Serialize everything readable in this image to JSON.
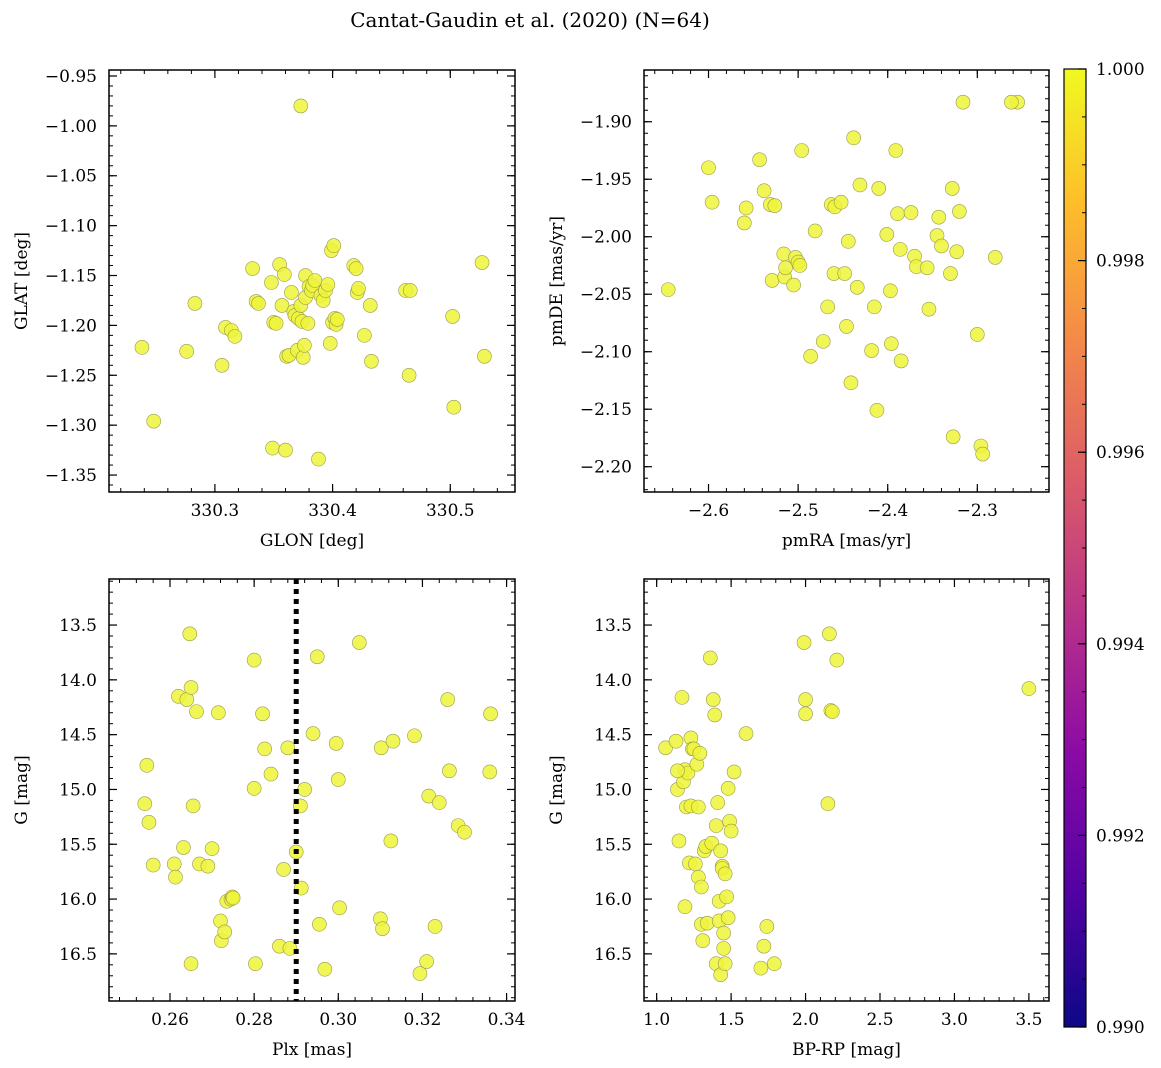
{
  "title": "Cantat-Gaudin et al. (2020) (N=64)",
  "colorbar": {
    "min": 0.99,
    "max": 1.0,
    "ticks": [
      "0.990",
      "0.992",
      "0.994",
      "0.996",
      "0.998",
      "1.000"
    ],
    "tick_values": [
      0.99,
      0.992,
      0.994,
      0.996,
      0.998,
      1.0
    ],
    "colormap": [
      "#0d0887",
      "#5302a3",
      "#8b0aa5",
      "#b83289",
      "#db5c68",
      "#f48849",
      "#febd2a",
      "#f0f921"
    ]
  },
  "marker_color": "#eef53a",
  "marker_edge": "#9a9a4a",
  "chart_data": [
    {
      "id": "glon-glat",
      "type": "scatter",
      "xlabel": "GLON [deg]",
      "ylabel": "GLAT [deg]",
      "xlim": [
        330.21,
        330.555
      ],
      "ylim": [
        -1.367,
        -0.944
      ],
      "yinvert": false,
      "xticks": [
        330.3,
        330.4,
        330.5
      ],
      "xtick_labels": [
        "330.3",
        "330.4",
        "330.5"
      ],
      "yticks": [
        -1.35,
        -1.3,
        -1.25,
        -1.2,
        -1.15,
        -1.1,
        -1.05,
        -1.0,
        -0.95
      ],
      "ytick_labels": [
        "−1.35",
        "−1.30",
        "−1.25",
        "−1.20",
        "−1.15",
        "−1.10",
        "−1.05",
        "−1.00",
        "−0.95"
      ],
      "x": [
        330.373,
        330.238,
        330.248,
        330.276,
        330.283,
        330.306,
        330.309,
        330.314,
        330.317,
        330.332,
        330.335,
        330.337,
        330.348,
        330.35,
        330.349,
        330.352,
        330.355,
        330.357,
        330.359,
        330.36,
        330.361,
        330.363,
        330.365,
        330.367,
        330.368,
        330.37,
        330.371,
        330.373,
        330.374,
        330.375,
        330.376,
        330.377,
        330.377,
        330.379,
        330.38,
        330.382,
        330.383,
        330.385,
        330.388,
        330.39,
        330.392,
        330.394,
        330.396,
        330.398,
        330.399,
        330.4,
        330.401,
        330.402,
        330.403,
        330.404,
        330.418,
        330.42,
        330.421,
        330.422,
        330.427,
        330.432,
        330.433,
        330.462,
        330.465,
        330.466,
        330.502,
        330.503,
        330.527,
        330.529
      ],
      "y": [
        -0.98,
        -1.222,
        -1.296,
        -1.226,
        -1.178,
        -1.24,
        -1.202,
        -1.205,
        -1.211,
        -1.143,
        -1.176,
        -1.178,
        -1.157,
        -1.197,
        -1.323,
        -1.198,
        -1.139,
        -1.18,
        -1.149,
        -1.325,
        -1.231,
        -1.23,
        -1.167,
        -1.186,
        -1.19,
        -1.225,
        -1.193,
        -1.18,
        -1.196,
        -1.232,
        -1.22,
        -1.172,
        -1.15,
        -1.198,
        -1.161,
        -1.165,
        -1.16,
        -1.155,
        -1.334,
        -1.17,
        -1.175,
        -1.165,
        -1.159,
        -1.218,
        -1.125,
        -1.197,
        -1.12,
        -1.193,
        -1.199,
        -1.194,
        -1.14,
        -1.143,
        -1.167,
        -1.163,
        -1.21,
        -1.18,
        -1.236,
        -1.165,
        -1.25,
        -1.165,
        -1.191,
        -1.282,
        -1.137,
        -1.231
      ]
    },
    {
      "id": "pmra-pmde",
      "type": "scatter",
      "xlabel": "pmRA [mas/yr]",
      "ylabel": "pmDE [mas/yr]",
      "xlim": [
        -2.672,
        -2.22
      ],
      "ylim": [
        -2.222,
        -1.855
      ],
      "yinvert": false,
      "xticks": [
        -2.6,
        -2.5,
        -2.4,
        -2.3
      ],
      "xtick_labels": [
        "−2.6",
        "−2.5",
        "−2.4",
        "−2.3"
      ],
      "yticks": [
        -2.2,
        -2.15,
        -2.1,
        -2.05,
        -2.0,
        -1.95,
        -1.9
      ],
      "ytick_labels": [
        "−2.20",
        "−2.15",
        "−2.10",
        "−2.05",
        "−2.00",
        "−1.95",
        "−1.90"
      ],
      "x": [
        -2.645,
        -2.6,
        -2.596,
        -2.56,
        -2.558,
        -2.543,
        -2.538,
        -2.531,
        -2.529,
        -2.526,
        -2.516,
        -2.515,
        -2.514,
        -2.505,
        -2.503,
        -2.5,
        -2.498,
        -2.496,
        -2.486,
        -2.481,
        -2.472,
        -2.467,
        -2.463,
        -2.46,
        -2.459,
        -2.452,
        -2.448,
        -2.446,
        -2.444,
        -2.441,
        -2.438,
        -2.434,
        -2.431,
        -2.418,
        -2.415,
        -2.412,
        -2.41,
        -2.401,
        -2.397,
        -2.396,
        -2.391,
        -2.389,
        -2.386,
        -2.385,
        -2.374,
        -2.37,
        -2.368,
        -2.356,
        -2.354,
        -2.345,
        -2.343,
        -2.34,
        -2.33,
        -2.328,
        -2.327,
        -2.323,
        -2.32,
        -2.316,
        -2.3,
        -2.296,
        -2.294,
        -2.28,
        -2.255,
        -2.262
      ],
      "y": [
        -2.046,
        -1.94,
        -1.97,
        -1.988,
        -1.975,
        -1.933,
        -1.96,
        -1.972,
        -2.038,
        -1.973,
        -2.015,
        -2.035,
        -2.027,
        -2.042,
        -2.018,
        -2.022,
        -2.025,
        -1.925,
        -2.104,
        -1.995,
        -2.091,
        -2.061,
        -1.972,
        -2.032,
        -1.974,
        -1.97,
        -2.032,
        -2.078,
        -2.004,
        -2.127,
        -1.914,
        -2.044,
        -1.955,
        -2.099,
        -2.061,
        -2.151,
        -1.958,
        -1.998,
        -2.047,
        -2.093,
        -1.925,
        -1.98,
        -2.011,
        -2.108,
        -1.979,
        -2.017,
        -2.026,
        -2.027,
        -2.063,
        -1.999,
        -1.983,
        -2.008,
        -2.032,
        -1.958,
        -2.174,
        -2.013,
        -1.978,
        -1.883,
        -2.085,
        -2.182,
        -2.189,
        -2.018,
        -1.883,
        -1.883
      ]
    },
    {
      "id": "plx-g",
      "type": "scatter",
      "xlabel": "Plx [mas]",
      "ylabel": "G [mag]",
      "xlim": [
        0.2455,
        0.342
      ],
      "ylim": [
        16.93,
        13.08
      ],
      "yinvert": true,
      "vline": 0.29,
      "xticks": [
        0.26,
        0.28,
        0.3,
        0.32,
        0.34
      ],
      "xtick_labels": [
        "0.26",
        "0.28",
        "0.30",
        "0.32",
        "0.34"
      ],
      "yticks": [
        13.5,
        14.0,
        14.5,
        15.0,
        15.5,
        16.0,
        16.5
      ],
      "ytick_labels": [
        "13.5",
        "14.0",
        "14.5",
        "15.0",
        "15.5",
        "16.0",
        "16.5"
      ],
      "x": [
        0.254,
        0.2545,
        0.255,
        0.256,
        0.261,
        0.2613,
        0.262,
        0.2632,
        0.264,
        0.2647,
        0.265,
        0.265,
        0.2655,
        0.2663,
        0.267,
        0.269,
        0.27,
        0.2715,
        0.272,
        0.2722,
        0.273,
        0.2735,
        0.2745,
        0.2748,
        0.275,
        0.28,
        0.28,
        0.2803,
        0.282,
        0.2825,
        0.284,
        0.286,
        0.287,
        0.288,
        0.2885,
        0.29,
        0.291,
        0.2912,
        0.292,
        0.294,
        0.295,
        0.2955,
        0.2968,
        0.2995,
        0.3,
        0.3003,
        0.305,
        0.31,
        0.3102,
        0.3105,
        0.3125,
        0.313,
        0.3181,
        0.3194,
        0.321,
        0.3215,
        0.323,
        0.324,
        0.326,
        0.3264,
        0.3285,
        0.33,
        0.336,
        0.3362
      ],
      "y": [
        15.13,
        14.78,
        15.3,
        15.69,
        15.68,
        15.8,
        14.15,
        15.53,
        14.18,
        13.58,
        14.07,
        16.59,
        15.15,
        14.29,
        15.68,
        15.7,
        15.54,
        14.3,
        16.2,
        16.38,
        16.3,
        16.02,
        16.0,
        15.98,
        15.99,
        13.82,
        14.99,
        16.59,
        14.31,
        14.63,
        14.86,
        16.43,
        15.73,
        14.62,
        16.45,
        15.57,
        15.15,
        15.9,
        15.0,
        14.49,
        13.79,
        16.23,
        16.64,
        14.58,
        14.91,
        16.08,
        13.66,
        16.18,
        14.62,
        16.27,
        15.47,
        14.56,
        14.51,
        16.68,
        16.57,
        15.06,
        16.25,
        15.12,
        14.18,
        14.83,
        15.33,
        15.39,
        14.84,
        14.31
      ]
    },
    {
      "id": "bprp-g",
      "type": "scatter",
      "xlabel": "BP-RP [mag]",
      "ylabel": "G [mag]",
      "xlim": [
        0.915,
        3.635
      ],
      "ylim": [
        16.93,
        13.08
      ],
      "yinvert": true,
      "xticks": [
        1.0,
        1.5,
        2.0,
        2.5,
        3.0,
        3.5
      ],
      "xtick_labels": [
        "1.0",
        "1.5",
        "2.0",
        "2.5",
        "3.0",
        "3.5"
      ],
      "yticks": [
        13.5,
        14.0,
        14.5,
        15.0,
        15.5,
        16.0,
        16.5
      ],
      "ytick_labels": [
        "13.5",
        "14.0",
        "14.5",
        "15.0",
        "15.5",
        "16.0",
        "16.5"
      ],
      "x": [
        1.06,
        1.13,
        1.14,
        1.15,
        1.17,
        1.18,
        1.19,
        1.19,
        1.2,
        1.21,
        1.22,
        1.23,
        1.23,
        1.24,
        1.25,
        1.26,
        1.27,
        1.28,
        1.28,
        1.29,
        1.3,
        1.3,
        1.31,
        1.32,
        1.33,
        1.34,
        1.36,
        1.37,
        1.38,
        1.39,
        1.4,
        1.4,
        1.41,
        1.42,
        1.42,
        1.43,
        1.43,
        1.44,
        1.44,
        1.45,
        1.45,
        1.46,
        1.46,
        1.47,
        1.48,
        1.48,
        1.49,
        1.5,
        1.52,
        1.6,
        1.7,
        1.72,
        1.74,
        1.79,
        1.99,
        2.0,
        2.0,
        2.15,
        2.16,
        2.17,
        2.18,
        2.21,
        3.5,
        1.14
      ],
      "y": [
        14.62,
        14.56,
        15.0,
        15.47,
        14.16,
        14.93,
        14.82,
        16.07,
        15.16,
        14.85,
        15.67,
        15.15,
        14.53,
        14.63,
        14.63,
        15.68,
        14.77,
        15.16,
        15.8,
        14.67,
        15.89,
        16.23,
        16.38,
        15.56,
        15.52,
        16.22,
        13.8,
        15.49,
        14.18,
        14.32,
        15.33,
        16.59,
        15.12,
        16.02,
        16.2,
        15.56,
        16.69,
        15.7,
        15.72,
        16.31,
        16.45,
        15.77,
        16.59,
        15.98,
        16.17,
        14.99,
        15.29,
        15.38,
        14.84,
        14.49,
        16.63,
        16.43,
        16.25,
        16.59,
        13.66,
        14.18,
        14.31,
        15.13,
        13.58,
        14.28,
        14.29,
        13.82,
        14.08,
        14.83
      ]
    }
  ]
}
